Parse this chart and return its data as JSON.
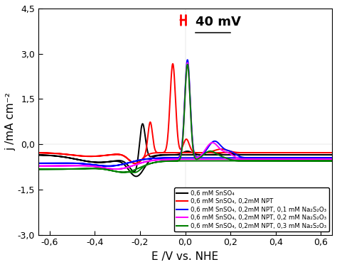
{
  "title": "",
  "xlabel": "E /V vs. NHE",
  "ylabel": "j /mA cm⁻²",
  "xlim": [
    -0.65,
    0.65
  ],
  "ylim": [
    -3.0,
    4.5
  ],
  "yticks": [
    -3.0,
    -1.5,
    0.0,
    1.5,
    3.0,
    4.5
  ],
  "ytick_labels": [
    "-3,0",
    "-1,5",
    "0,0",
    "1,5",
    "3,0",
    "4,5"
  ],
  "xticks": [
    -0.6,
    -0.4,
    -0.2,
    0.0,
    0.2,
    0.4,
    0.6
  ],
  "xtick_labels": [
    "-0,6",
    "-0,4",
    "-0,2",
    "0,0",
    "0,2",
    "0,4",
    "0,6"
  ],
  "colors": {
    "black": "#000000",
    "red": "#ff0000",
    "blue": "#0000ff",
    "magenta": "#ff00ff",
    "green": "#008000"
  },
  "legend_labels": [
    "0,6 mM SnSO₄",
    "0,6 mM SnSO₄, 0,2mM NPT",
    "0,6 mM SnSO₄, 0,2mM NPT, 0,1 mM Na₂S₂O₃",
    "0,6 mM SnSO₄, 0,2mM NPT, 0,2 mM Na₂S₂O₃",
    "0,6 mM SnSO₄, 0,2mM NPT, 0,3 mM Na₂S₂O₃"
  ],
  "background_color": "#ffffff"
}
